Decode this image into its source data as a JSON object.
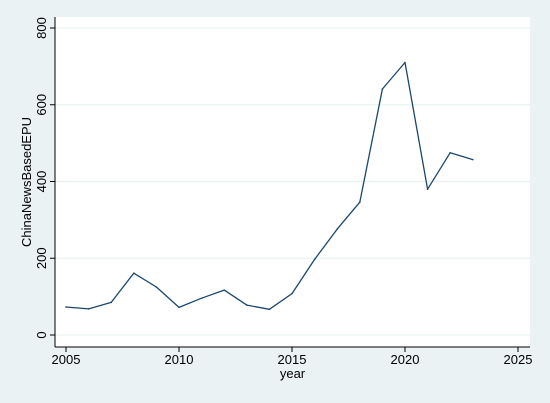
{
  "chart_data": {
    "type": "line",
    "title": "",
    "xlabel": "year",
    "ylabel": "ChinaNewsBasedEPU",
    "xlim": [
      2005,
      2025
    ],
    "ylim": [
      0,
      800
    ],
    "xticks": [
      2005,
      2010,
      2015,
      2020,
      2025
    ],
    "yticks": [
      0,
      200,
      400,
      600,
      800
    ],
    "grid": "horizontal",
    "legend": "none",
    "x": [
      2005,
      2006,
      2007,
      2008,
      2009,
      2010,
      2011,
      2012,
      2013,
      2014,
      2015,
      2016,
      2017,
      2018,
      2019,
      2020,
      2021,
      2022,
      2023
    ],
    "series": [
      {
        "values": [
          73,
          68,
          85,
          161,
          125,
          72,
          96,
          117,
          78,
          67,
          108,
          197,
          276,
          346,
          641,
          710,
          380,
          475,
          457
        ]
      }
    ],
    "colors": {
      "outer_background": "#eaf2f3",
      "plot_background": "#ffffff",
      "line": "#1a476f",
      "grid": "#eaf2f3",
      "axis": "#000000"
    }
  }
}
